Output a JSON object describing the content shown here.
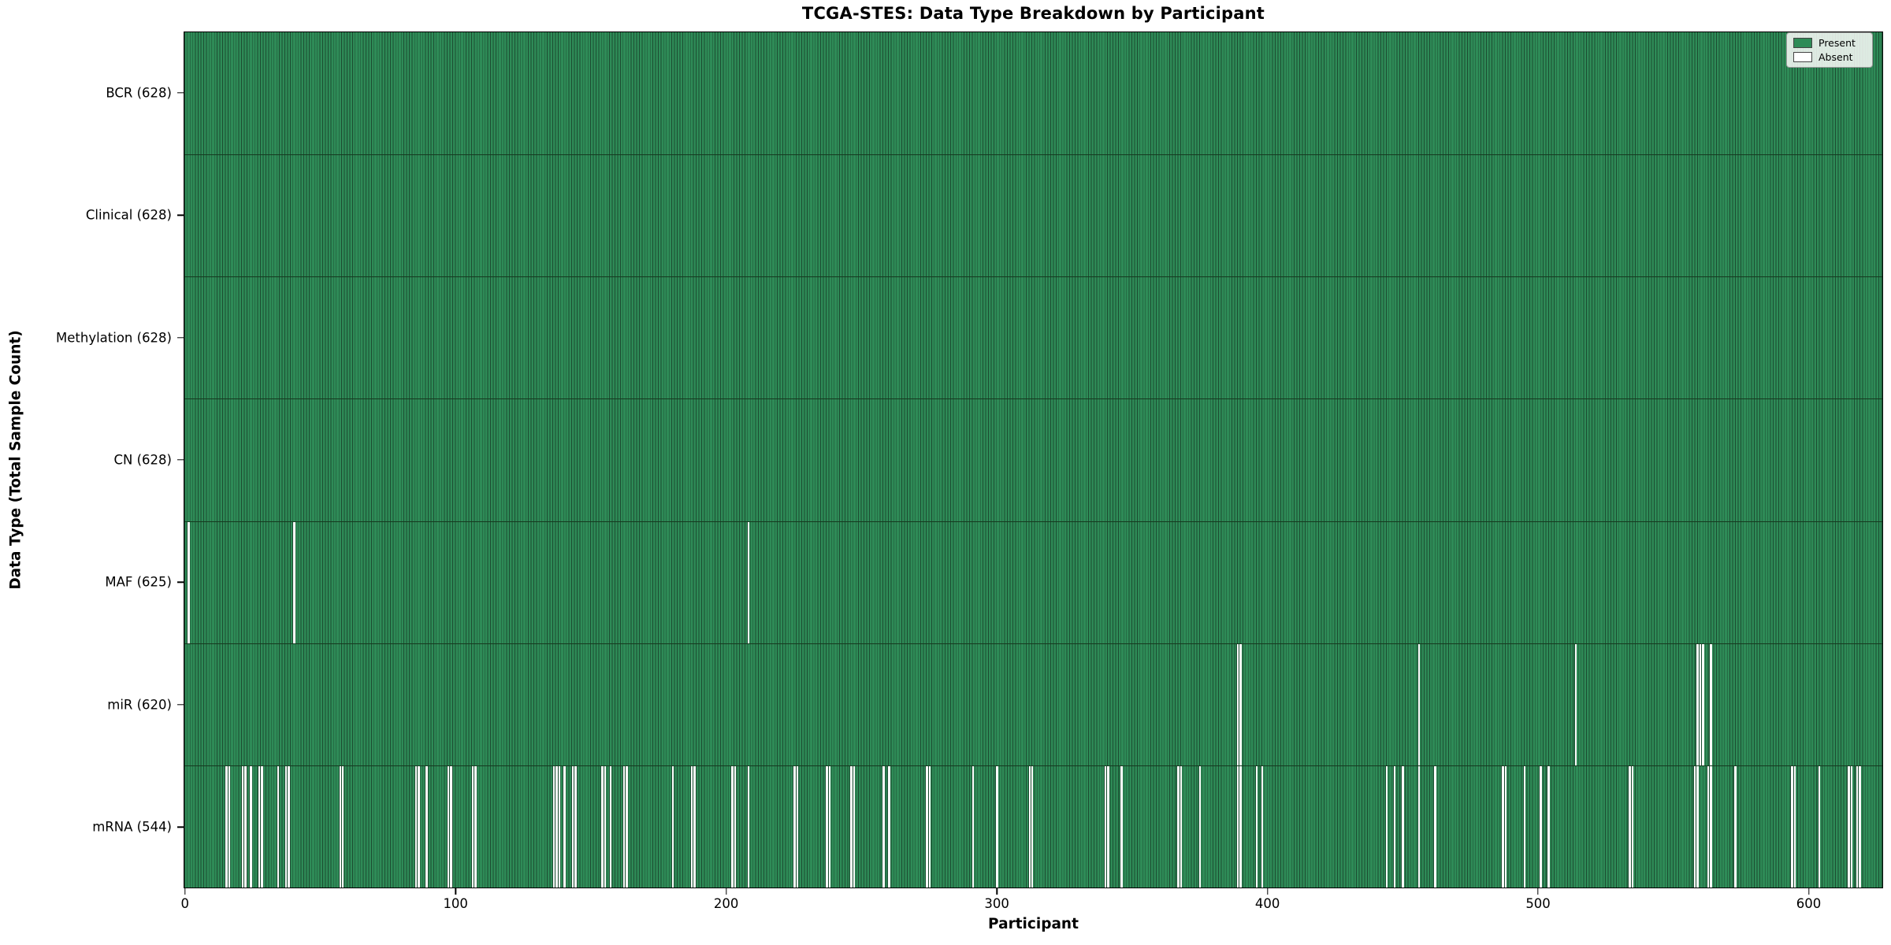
{
  "chart_data": {
    "type": "heatmap",
    "title": "TCGA-STES: Data Type Breakdown by Participant",
    "xlabel": "Participant",
    "ylabel": "Data Type (Total Sample Count)",
    "x_ticks": [
      0,
      100,
      200,
      300,
      400,
      500,
      600
    ],
    "n_participants": 628,
    "xlim": [
      -0.5,
      627.5
    ],
    "grid": false,
    "legend": {
      "position": "upper right",
      "entries": [
        {
          "label": "Present",
          "color": "#2e8b57"
        },
        {
          "label": "Absent",
          "color": "#ffffff"
        }
      ]
    },
    "colors": {
      "present_fill": "#2e8b57",
      "bar_edge": "#1c4c31",
      "absent_fill": "#ffffff",
      "plot_border": "#000000",
      "background": "#ffffff"
    },
    "rows": [
      {
        "label": "BCR (628)",
        "data_type": "BCR",
        "present_count": 628,
        "absent_participants": []
      },
      {
        "label": "Clinical (628)",
        "data_type": "Clinical",
        "present_count": 628,
        "absent_participants": []
      },
      {
        "label": "Methylation (628)",
        "data_type": "Methylation",
        "present_count": 628,
        "absent_participants": []
      },
      {
        "label": "CN (628)",
        "data_type": "CN",
        "present_count": 628,
        "absent_participants": []
      },
      {
        "label": "MAF (625)",
        "data_type": "MAF",
        "present_count": 625,
        "absent_participants": [
          1,
          40,
          208
        ]
      },
      {
        "label": "miR (620)",
        "data_type": "miR",
        "present_count": 620,
        "absent_participants": [
          389,
          390,
          456,
          514,
          559,
          560,
          561,
          564
        ]
      },
      {
        "label": "mRNA (544)",
        "data_type": "mRNA",
        "present_count": 544,
        "absent_participants": [
          15,
          16,
          21,
          22,
          24,
          27,
          28,
          34,
          37,
          38,
          57,
          58,
          85,
          86,
          89,
          97,
          98,
          106,
          107,
          136,
          137,
          138,
          140,
          143,
          144,
          154,
          155,
          157,
          162,
          163,
          180,
          187,
          188,
          202,
          203,
          208,
          225,
          226,
          237,
          238,
          246,
          247,
          258,
          260,
          274,
          275,
          291,
          300,
          312,
          313,
          340,
          341,
          346,
          367,
          368,
          375,
          389,
          390,
          396,
          398,
          444,
          447,
          450,
          456,
          462,
          487,
          488,
          495,
          501,
          504,
          534,
          535,
          558,
          559,
          563,
          564,
          573,
          594,
          595,
          604,
          615,
          616,
          618,
          619
        ]
      }
    ]
  }
}
